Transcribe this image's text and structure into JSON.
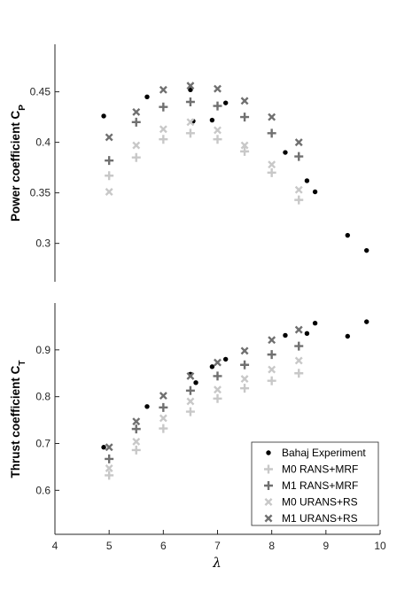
{
  "chart_data": [
    {
      "type": "scatter",
      "panel": "top",
      "ylabel_main": "Power coefficient C",
      "ylabel_sub": "P",
      "xlim": [
        4,
        10
      ],
      "ylim": [
        0.262,
        0.497
      ],
      "yticks": [
        0.3,
        0.35,
        0.4,
        0.45
      ],
      "ytick_labels": [
        "0.3",
        "0.35",
        "0.4",
        "0.45"
      ],
      "grid": false,
      "series": [
        {
          "name": "Bahaj Experiment",
          "marker": "dot",
          "color": "#000000",
          "x": [
            4.9,
            5.7,
            6.5,
            6.55,
            6.9,
            7.15,
            8.25,
            8.65,
            8.8,
            9.4,
            9.75
          ],
          "y": [
            0.426,
            0.445,
            0.452,
            0.421,
            0.422,
            0.439,
            0.39,
            0.362,
            0.351,
            0.308,
            0.293
          ]
        },
        {
          "name": "M0 RANS+MRF",
          "marker": "plus",
          "color": "#c8c8c8",
          "x": [
            5,
            5.5,
            6,
            6.5,
            7,
            7.5,
            8,
            8.5
          ],
          "y": [
            0.367,
            0.385,
            0.403,
            0.409,
            0.403,
            0.391,
            0.37,
            0.343
          ]
        },
        {
          "name": "M1 RANS+MRF",
          "marker": "plus",
          "color": "#707070",
          "x": [
            5,
            5.5,
            6,
            6.5,
            7,
            7.5,
            8,
            8.5
          ],
          "y": [
            0.382,
            0.42,
            0.435,
            0.44,
            0.436,
            0.425,
            0.409,
            0.386
          ]
        },
        {
          "name": "M0 URANS+RS",
          "marker": "cross",
          "color": "#c8c8c8",
          "x": [
            5,
            5.5,
            6,
            6.5,
            7,
            7.5,
            8,
            8.5
          ],
          "y": [
            0.351,
            0.397,
            0.413,
            0.42,
            0.412,
            0.397,
            0.378,
            0.353
          ]
        },
        {
          "name": "M1 URANS+RS",
          "marker": "cross",
          "color": "#707070",
          "x": [
            5,
            5.5,
            6,
            6.5,
            7,
            7.5,
            8,
            8.5
          ],
          "y": [
            0.405,
            0.43,
            0.452,
            0.456,
            0.453,
            0.441,
            0.425,
            0.4
          ]
        }
      ]
    },
    {
      "type": "scatter",
      "panel": "bottom",
      "ylabel_main": "Thrust coefficient C",
      "ylabel_sub": "T",
      "xlabel": "λ",
      "xlim": [
        4,
        10
      ],
      "ylim": [
        0.506,
        1.0
      ],
      "xticks": [
        4,
        5,
        6,
        7,
        8,
        9,
        10
      ],
      "xtick_labels": [
        "4",
        "5",
        "6",
        "7",
        "8",
        "9",
        "10"
      ],
      "yticks": [
        0.6,
        0.7,
        0.8,
        0.9
      ],
      "ytick_labels": [
        "0.6",
        "0.7",
        "0.8",
        "0.9"
      ],
      "grid": false,
      "legend_position": "bottom-right",
      "series": [
        {
          "name": "Bahaj Experiment",
          "marker": "dot",
          "color": "#000000",
          "x": [
            4.9,
            5.7,
            6.5,
            6.6,
            6.9,
            7.15,
            8.25,
            8.65,
            8.8,
            9.4,
            9.75
          ],
          "y": [
            0.692,
            0.779,
            0.848,
            0.83,
            0.864,
            0.88,
            0.931,
            0.935,
            0.957,
            0.929,
            0.96
          ]
        },
        {
          "name": "M0 RANS+MRF",
          "marker": "plus",
          "color": "#c8c8c8",
          "x": [
            5,
            5.5,
            6,
            6.5,
            7,
            7.5,
            8,
            8.5
          ],
          "y": [
            0.632,
            0.686,
            0.732,
            0.768,
            0.796,
            0.818,
            0.834,
            0.85
          ]
        },
        {
          "name": "M1 RANS+MRF",
          "marker": "plus",
          "color": "#707070",
          "x": [
            5,
            5.5,
            6,
            6.5,
            7,
            7.5,
            8,
            8.5
          ],
          "y": [
            0.667,
            0.731,
            0.777,
            0.813,
            0.844,
            0.868,
            0.89,
            0.908
          ]
        },
        {
          "name": "M0 URANS+RS",
          "marker": "cross",
          "color": "#c8c8c8",
          "x": [
            5,
            5.5,
            6,
            6.5,
            7,
            7.5,
            8,
            8.5
          ],
          "y": [
            0.647,
            0.704,
            0.754,
            0.79,
            0.815,
            0.838,
            0.858,
            0.877
          ]
        },
        {
          "name": "M1 URANS+RS",
          "marker": "cross",
          "color": "#707070",
          "x": [
            5,
            5.5,
            6,
            6.5,
            7,
            7.5,
            8,
            8.5
          ],
          "y": [
            0.692,
            0.747,
            0.802,
            0.844,
            0.873,
            0.898,
            0.921,
            0.943
          ]
        }
      ]
    }
  ]
}
